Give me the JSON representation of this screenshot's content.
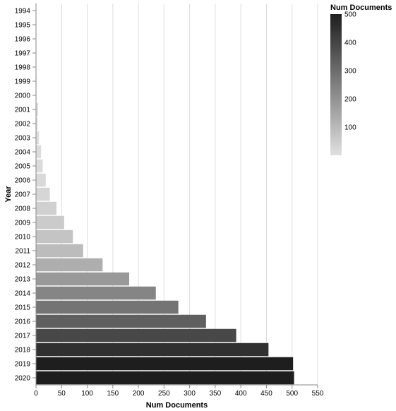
{
  "chart_data": {
    "type": "bar",
    "orientation": "horizontal",
    "categories": [
      "1994",
      "1995",
      "1996",
      "1997",
      "1998",
      "1999",
      "2000",
      "2001",
      "2002",
      "2003",
      "2004",
      "2005",
      "2006",
      "2007",
      "2008",
      "2009",
      "2010",
      "2011",
      "2012",
      "2013",
      "2014",
      "2015",
      "2016",
      "2017",
      "2018",
      "2019",
      "2020"
    ],
    "values": [
      0,
      0,
      0,
      0,
      0,
      1,
      1,
      4,
      3,
      6,
      10,
      13,
      19,
      27,
      40,
      55,
      72,
      92,
      130,
      182,
      234,
      278,
      332,
      391,
      454,
      502,
      504
    ],
    "xlabel": "Num Documents",
    "ylabel": "Year",
    "xlim": [
      0,
      550
    ],
    "xticks": [
      0,
      50,
      100,
      150,
      200,
      250,
      300,
      350,
      400,
      450,
      500,
      550
    ],
    "grid": true,
    "color_scale": {
      "domain": [
        0,
        500
      ],
      "range": [
        "#e0e0e0",
        "#1e1e1e"
      ]
    },
    "legend": {
      "title": "Num Documents",
      "placement": "top-right",
      "ticks": [
        100,
        200,
        300,
        400,
        500
      ]
    }
  }
}
